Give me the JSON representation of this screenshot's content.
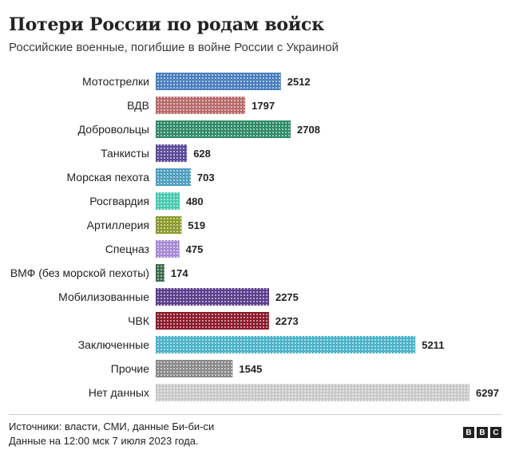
{
  "title": "Потери России по родам войск",
  "subtitle": "Российские военные, погибшие в войне России с Украиной",
  "chart_data": {
    "type": "bar",
    "orientation": "horizontal",
    "categories": [
      "Мотострелки",
      "ВДВ",
      "Добровольцы",
      "Танкисты",
      "Морская пехота",
      "Росгвардия",
      "Артиллерия",
      "Спецназ",
      "ВМФ (без морской пехоты)",
      "Мобилизованные",
      "ЧВК",
      "Заключенные",
      "Прочие",
      "Нет данных"
    ],
    "values": [
      2512,
      1797,
      2708,
      628,
      703,
      480,
      519,
      475,
      174,
      2275,
      2273,
      5211,
      1545,
      6297
    ],
    "colors": [
      "#4a7fbf",
      "#b96a6a",
      "#2f8a69",
      "#5b4a99",
      "#4d9dbf",
      "#48c9b0",
      "#8c9a2a",
      "#a689d6",
      "#3b6b4e",
      "#5a3e8c",
      "#8b1a2b",
      "#4ab3c8",
      "#8a8a8a",
      "#c9c9c9"
    ],
    "value_labels_shown": true,
    "grid": false,
    "legend": "none"
  },
  "footer": {
    "source": "Источники: власти, СМИ, данные Би-би-си",
    "date": "Данные на 12:00 мск 7 июля 2023 года.",
    "logo_letters": [
      "B",
      "B",
      "C"
    ]
  }
}
